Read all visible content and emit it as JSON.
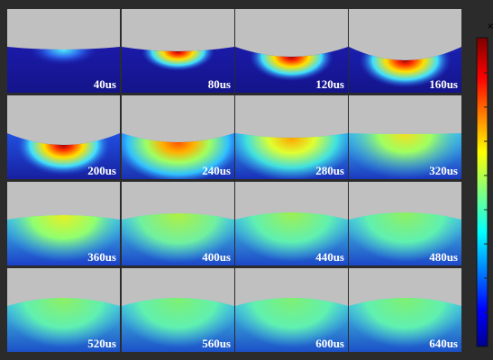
{
  "panels": [
    {
      "label": "40us"
    },
    {
      "label": "80us"
    },
    {
      "label": "120us"
    },
    {
      "label": "160us"
    },
    {
      "label": "200us"
    },
    {
      "label": "240us"
    },
    {
      "label": "280us"
    },
    {
      "label": "320us"
    },
    {
      "label": "360us"
    },
    {
      "label": "400us"
    },
    {
      "label": "440us"
    },
    {
      "label": "480us"
    },
    {
      "label": "520us"
    },
    {
      "label": "560us"
    },
    {
      "label": "600us"
    },
    {
      "label": "640us"
    }
  ],
  "colorbar": {
    "exponent_mark": "×"
  }
}
